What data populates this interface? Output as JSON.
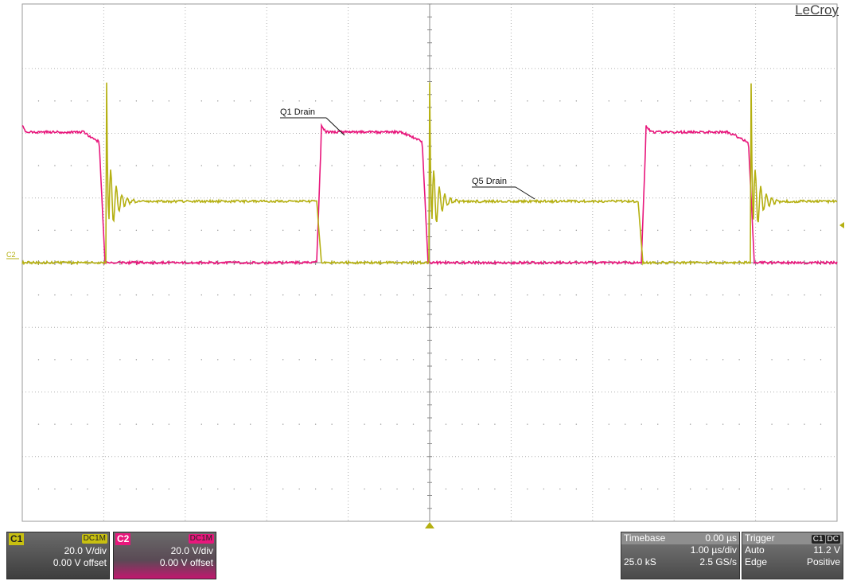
{
  "brand": "LeCroy",
  "colors": {
    "c1": "#b5b012",
    "c2": "#e8177c",
    "grid": "#b0b0b0"
  },
  "annotations": {
    "q1": "Q1 Drain",
    "q5": "Q5 Drain"
  },
  "markers": {
    "c2_level": "C2"
  },
  "channels": [
    {
      "id": "C1",
      "coupling": "DC1M",
      "vdiv": "20.0 V/div",
      "offset": "0.00 V offset"
    },
    {
      "id": "C2",
      "coupling": "DC1M",
      "vdiv": "20.0 V/div",
      "offset": "0.00 V offset"
    }
  ],
  "timebase": {
    "label": "Timebase",
    "delay": "0.00 µs",
    "tdiv": "1.00 µs/div",
    "samples": "25.0 kS",
    "rate": "2.5 GS/s"
  },
  "trigger": {
    "label": "Trigger",
    "src": "C1",
    "coupling": "DC",
    "mode": "Auto",
    "level": "11.2 V",
    "type": "Edge",
    "slope": "Positive"
  }
}
